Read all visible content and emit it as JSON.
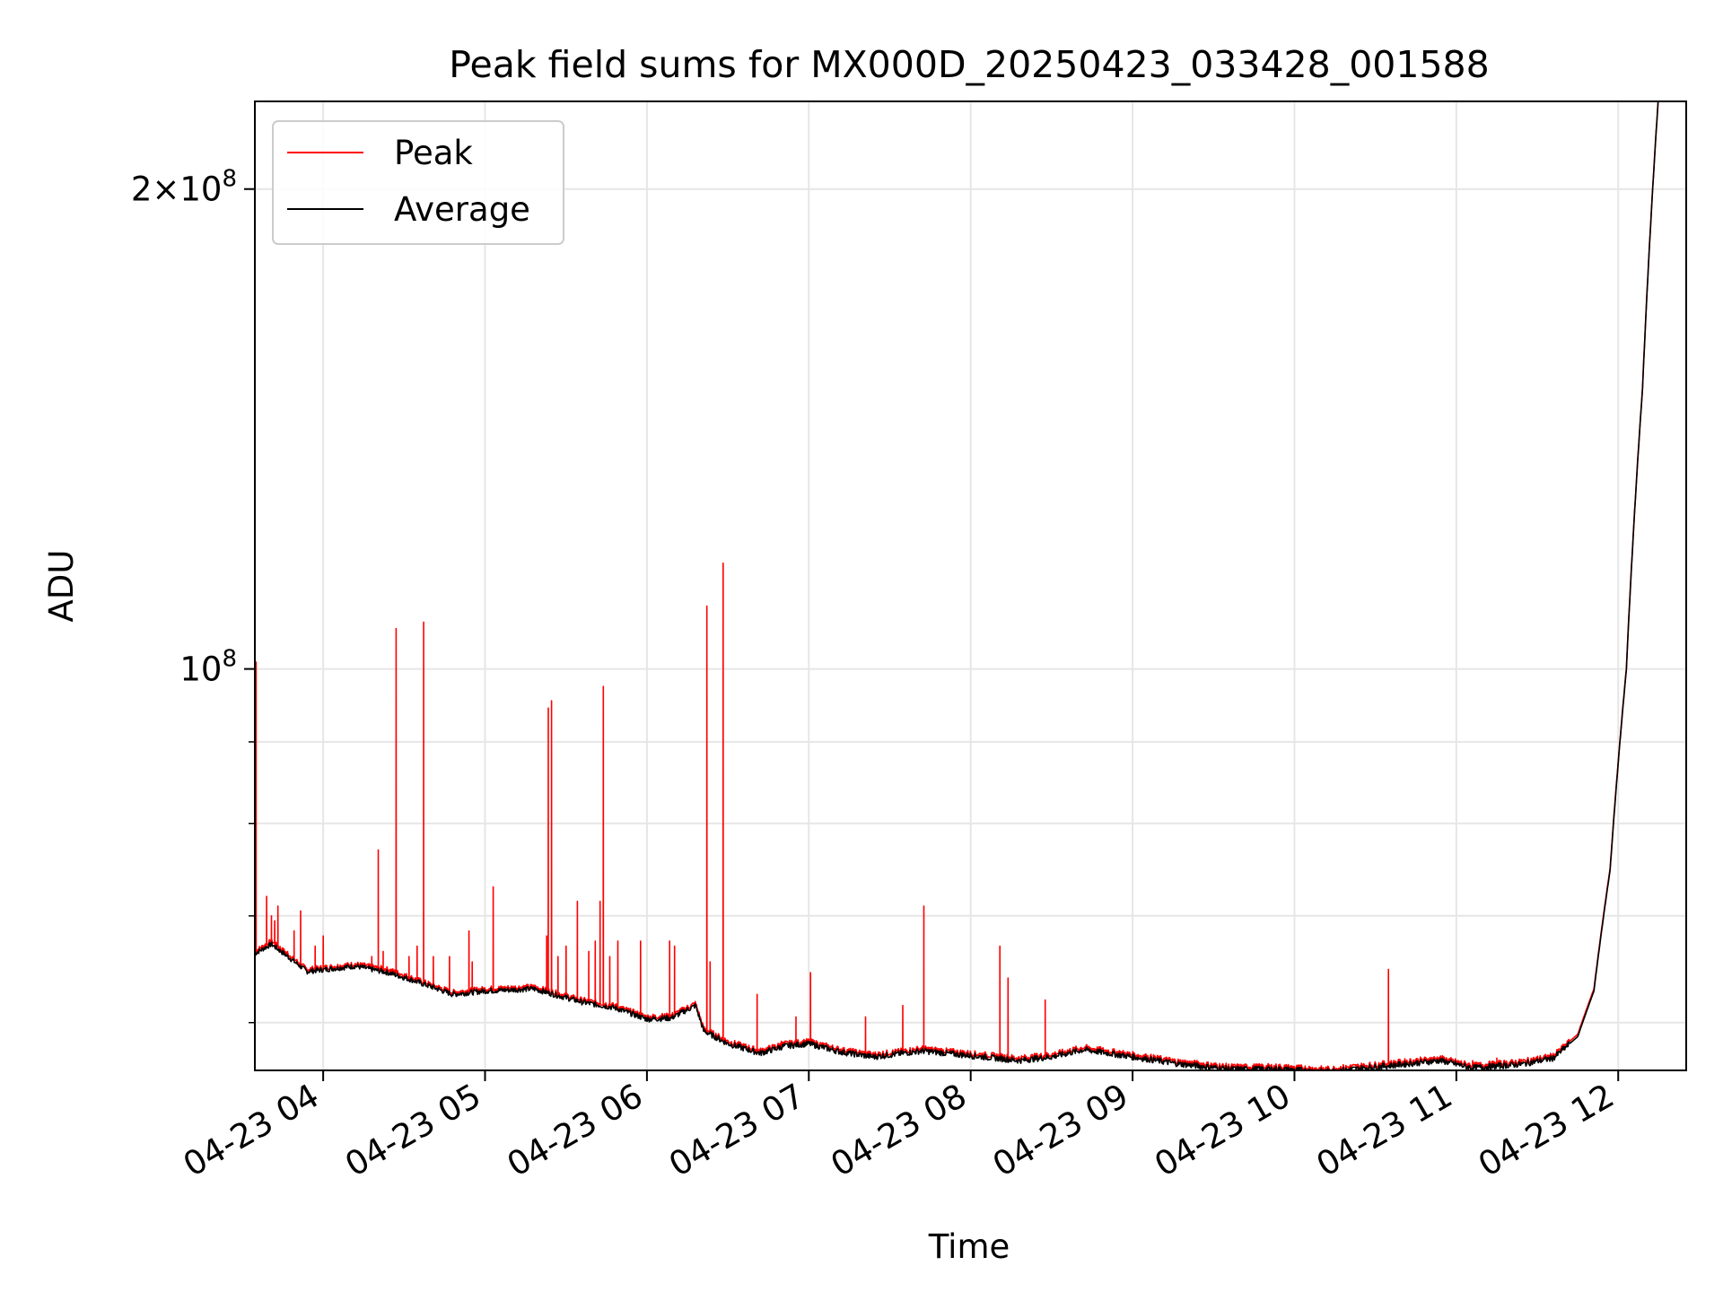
{
  "chart_data": {
    "type": "line",
    "title": "Peak field sums for MX000D_20250423_033428_001588",
    "xlabel": "Time",
    "ylabel": "ADU",
    "yscale": "log",
    "ylim": [
      56000000,
      227000000
    ],
    "xlim_hours": [
      3.578,
      12.42
    ],
    "grid": true,
    "legend_position": "top-left",
    "x_tick_labels": [
      "04-23 04",
      "04-23 05",
      "04-23 06",
      "04-23 07",
      "04-23 08",
      "04-23 09",
      "04-23 10",
      "04-23 11",
      "04-23 12"
    ],
    "x_tick_hours": [
      4,
      5,
      6,
      7,
      8,
      9,
      10,
      11,
      12
    ],
    "y_ticks": [
      {
        "value": 100000000,
        "mantissa": "",
        "exponent": "8"
      },
      {
        "value": 200000000,
        "mantissa": "2",
        "exponent": "8"
      }
    ],
    "y_minor_ticks": [
      60000000,
      70000000,
      80000000,
      90000000
    ],
    "series": [
      {
        "name": "Peak",
        "color": "#ff0000",
        "baseline": [
          [
            3.578,
            66.5
          ],
          [
            3.68,
            67.5
          ],
          [
            3.9,
            64.8
          ],
          [
            4.2,
            65.3
          ],
          [
            4.4,
            64.8
          ],
          [
            4.55,
            64.0
          ],
          [
            4.8,
            62.7
          ],
          [
            5.0,
            63.0
          ],
          [
            5.3,
            63.2
          ],
          [
            5.6,
            62.0
          ],
          [
            5.8,
            61.5
          ],
          [
            6.0,
            60.5
          ],
          [
            6.15,
            60.6
          ],
          [
            6.3,
            61.7
          ],
          [
            6.35,
            59.5
          ],
          [
            6.5,
            58.4
          ],
          [
            6.7,
            57.6
          ],
          [
            6.85,
            58.2
          ],
          [
            7.0,
            58.4
          ],
          [
            7.2,
            57.7
          ],
          [
            7.4,
            57.3
          ],
          [
            7.7,
            57.8
          ],
          [
            8.0,
            57.4
          ],
          [
            8.3,
            57.0
          ],
          [
            8.5,
            57.3
          ],
          [
            8.7,
            57.9
          ],
          [
            9.0,
            57.3
          ],
          [
            9.3,
            56.7
          ],
          [
            9.6,
            56.3
          ],
          [
            9.9,
            56.3
          ],
          [
            10.2,
            56.1
          ],
          [
            10.6,
            56.6
          ],
          [
            10.9,
            57.0
          ],
          [
            11.1,
            56.4
          ],
          [
            11.4,
            56.7
          ],
          [
            11.6,
            57.2
          ],
          [
            11.75,
            59.0
          ],
          [
            11.85,
            63.0
          ],
          [
            11.95,
            75.0
          ],
          [
            12.05,
            100.0
          ],
          [
            12.15,
            150.0
          ],
          [
            12.25,
            230.0
          ]
        ],
        "spikes": [
          [
            3.585,
            101.0
          ],
          [
            3.65,
            72.0
          ],
          [
            3.68,
            70.0
          ],
          [
            3.7,
            69.5
          ],
          [
            3.72,
            71.0
          ],
          [
            3.78,
            66.5
          ],
          [
            3.82,
            68.5
          ],
          [
            3.86,
            70.5
          ],
          [
            3.95,
            67.0
          ],
          [
            4.0,
            68.0
          ],
          [
            4.3,
            66.0
          ],
          [
            4.34,
            77.0
          ],
          [
            4.37,
            66.5
          ],
          [
            4.45,
            106.0
          ],
          [
            4.53,
            66.0
          ],
          [
            4.58,
            67.0
          ],
          [
            4.62,
            107.0
          ],
          [
            4.68,
            66.0
          ],
          [
            4.78,
            66.0
          ],
          [
            4.9,
            68.5
          ],
          [
            4.92,
            65.5
          ],
          [
            5.05,
            73.0
          ],
          [
            5.38,
            68.0
          ],
          [
            5.39,
            94.5
          ],
          [
            5.41,
            95.5
          ],
          [
            5.45,
            66.0
          ],
          [
            5.5,
            67.0
          ],
          [
            5.57,
            71.5
          ],
          [
            5.64,
            66.5
          ],
          [
            5.68,
            67.5
          ],
          [
            5.71,
            71.5
          ],
          [
            5.73,
            97.5
          ],
          [
            5.77,
            66.0
          ],
          [
            5.82,
            67.5
          ],
          [
            5.96,
            67.5
          ],
          [
            6.14,
            67.5
          ],
          [
            6.17,
            67.0
          ],
          [
            6.37,
            109.5
          ],
          [
            6.39,
            65.5
          ],
          [
            6.47,
            116.5
          ],
          [
            6.68,
            62.5
          ],
          [
            6.83,
            58.4
          ],
          [
            6.92,
            60.5
          ],
          [
            7.01,
            64.5
          ],
          [
            7.35,
            60.5
          ],
          [
            7.58,
            61.5
          ],
          [
            7.71,
            71.0
          ],
          [
            8.18,
            67.0
          ],
          [
            8.23,
            64.0
          ],
          [
            8.46,
            62.0
          ],
          [
            10.58,
            64.8
          ],
          [
            11.1,
            56.8
          ],
          [
            11.25,
            57.0
          ],
          [
            11.4,
            56.9
          ]
        ]
      },
      {
        "name": "Average",
        "color": "#000000",
        "baseline": [
          [
            3.578,
            66.3
          ],
          [
            3.68,
            67.2
          ],
          [
            3.9,
            64.6
          ],
          [
            4.2,
            65.1
          ],
          [
            4.4,
            64.5
          ],
          [
            4.55,
            63.8
          ],
          [
            4.8,
            62.5
          ],
          [
            5.0,
            62.8
          ],
          [
            5.3,
            63.0
          ],
          [
            5.6,
            61.8
          ],
          [
            5.8,
            61.3
          ],
          [
            6.0,
            60.3
          ],
          [
            6.15,
            60.4
          ],
          [
            6.3,
            61.5
          ],
          [
            6.35,
            59.3
          ],
          [
            6.5,
            58.2
          ],
          [
            6.7,
            57.4
          ],
          [
            6.85,
            58.0
          ],
          [
            7.0,
            58.2
          ],
          [
            7.2,
            57.5
          ],
          [
            7.4,
            57.1
          ],
          [
            7.7,
            57.6
          ],
          [
            8.0,
            57.2
          ],
          [
            8.3,
            56.8
          ],
          [
            8.5,
            57.1
          ],
          [
            8.7,
            57.7
          ],
          [
            9.0,
            57.1
          ],
          [
            9.3,
            56.5
          ],
          [
            9.6,
            56.1
          ],
          [
            9.9,
            56.1
          ],
          [
            10.2,
            55.9
          ],
          [
            10.6,
            56.4
          ],
          [
            10.9,
            56.8
          ],
          [
            11.1,
            56.2
          ],
          [
            11.4,
            56.5
          ],
          [
            11.6,
            57.0
          ],
          [
            11.75,
            58.8
          ],
          [
            11.85,
            62.8
          ],
          [
            11.95,
            74.8
          ],
          [
            12.05,
            99.8
          ],
          [
            12.15,
            149.8
          ],
          [
            12.25,
            229.5
          ]
        ]
      }
    ]
  }
}
